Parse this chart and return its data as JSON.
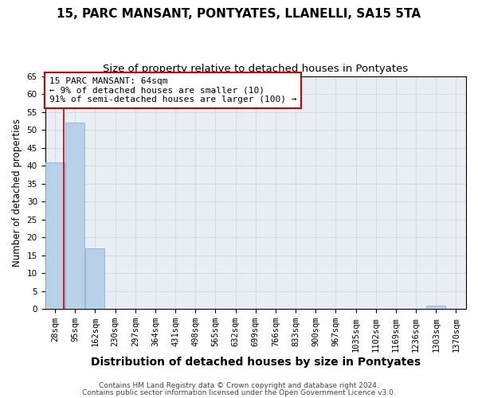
{
  "title": "15, PARC MANSANT, PONTYATES, LLANELLI, SA15 5TA",
  "subtitle": "Size of property relative to detached houses in Pontyates",
  "xlabel": "Distribution of detached houses by size in Pontyates",
  "ylabel": "Number of detached properties",
  "bins": [
    "28sqm",
    "95sqm",
    "162sqm",
    "230sqm",
    "297sqm",
    "364sqm",
    "431sqm",
    "498sqm",
    "565sqm",
    "632sqm",
    "699sqm",
    "766sqm",
    "833sqm",
    "900sqm",
    "967sqm",
    "1035sqm",
    "1102sqm",
    "1169sqm",
    "1236sqm",
    "1303sqm",
    "1370sqm"
  ],
  "values": [
    41,
    52,
    17,
    0,
    0,
    0,
    0,
    0,
    0,
    0,
    0,
    0,
    0,
    0,
    0,
    0,
    0,
    0,
    0,
    1,
    0
  ],
  "bar_color": "#b8d0e8",
  "bar_edge_color": "#8ab4d4",
  "vline_x": 0.44,
  "vline_color": "#cc0000",
  "annotation_text": "15 PARC MANSANT: 64sqm\n← 9% of detached houses are smaller (10)\n91% of semi-detached houses are larger (100) →",
  "annotation_box_color": "#ffffff",
  "annotation_box_edge": "#cc0000",
  "ylim": [
    0,
    65
  ],
  "yticks": [
    0,
    5,
    10,
    15,
    20,
    25,
    30,
    35,
    40,
    45,
    50,
    55,
    60,
    65
  ],
  "footer1": "Contains HM Land Registry data © Crown copyright and database right 2024.",
  "footer2": "Contains public sector information licensed under the Open Government Licence v3.0.",
  "bg_color": "#ffffff",
  "axes_bg_color": "#e8eef4",
  "grid_color": "#d0d8e0",
  "title_fontsize": 11,
  "subtitle_fontsize": 9.5,
  "xlabel_fontsize": 10,
  "ylabel_fontsize": 8.5,
  "tick_fontsize": 7.5,
  "footer_fontsize": 6.5
}
